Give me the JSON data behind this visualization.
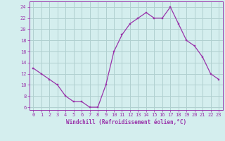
{
  "x": [
    0,
    1,
    2,
    3,
    4,
    5,
    6,
    7,
    8,
    9,
    10,
    11,
    12,
    13,
    14,
    15,
    16,
    17,
    18,
    19,
    20,
    21,
    22,
    23
  ],
  "y": [
    13,
    12,
    11,
    10,
    8,
    7,
    7,
    6,
    6,
    10,
    16,
    19,
    21,
    22,
    23,
    22,
    22,
    24,
    21,
    18,
    17,
    15,
    12,
    11
  ],
  "line_color": "#9933aa",
  "marker_color": "#9933aa",
  "bg_color": "#d4eeee",
  "grid_color": "#b0d0d0",
  "xlabel": "Windchill (Refroidissement éolien,°C)",
  "ylim": [
    5.5,
    25
  ],
  "xlim": [
    -0.5,
    23.5
  ],
  "yticks": [
    6,
    8,
    10,
    12,
    14,
    16,
    18,
    20,
    22,
    24
  ],
  "xticks": [
    0,
    1,
    2,
    3,
    4,
    5,
    6,
    7,
    8,
    9,
    10,
    11,
    12,
    13,
    14,
    15,
    16,
    17,
    18,
    19,
    20,
    21,
    22,
    23
  ],
  "tick_color": "#9933aa",
  "axis_color": "#9933aa"
}
